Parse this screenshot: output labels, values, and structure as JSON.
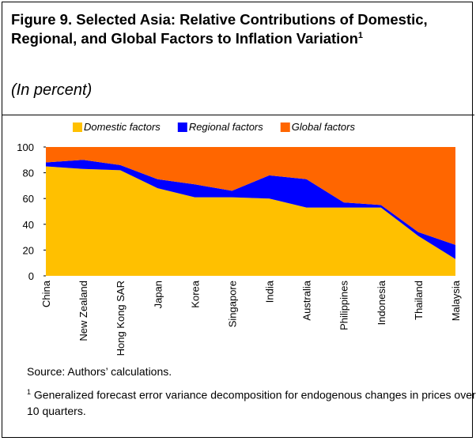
{
  "chart_data": {
    "type": "stacked-area",
    "title": "Figure 9. Selected Asia: Relative Contributions of Domestic, Regional, and Global Factors to Inflation Variation",
    "title_note": "1",
    "subtitle": "(In percent)",
    "categories": [
      "China",
      "New Zealand",
      "Hong Kong SAR",
      "Japan",
      "Korea",
      "Singapore",
      "India",
      "Australia",
      "Philippines",
      "Indonesia",
      "Thailand",
      "Malaysia"
    ],
    "series": [
      {
        "name": "Domestic factors",
        "color": "#ffc000",
        "values": [
          85,
          83,
          82,
          68,
          61,
          61,
          60,
          53,
          53,
          53,
          31,
          13
        ]
      },
      {
        "name": "Regional factors",
        "color": "#0000ff",
        "values": [
          3,
          7,
          4,
          7,
          10,
          5,
          18,
          22,
          4,
          2,
          3,
          11
        ]
      },
      {
        "name": "Global factors",
        "color": "#ff6600",
        "values": [
          12,
          10,
          14,
          25,
          29,
          34,
          22,
          25,
          43,
          45,
          66,
          76
        ]
      }
    ],
    "ylim": [
      0,
      100
    ],
    "yticks": [
      0,
      20,
      40,
      60,
      80,
      100
    ],
    "source": "Source: Authors’ calculations.",
    "footnote_marker": "1",
    "footnote": "Generalized forecast error variance decomposition for endogenous changes in prices over 10 quarters."
  }
}
